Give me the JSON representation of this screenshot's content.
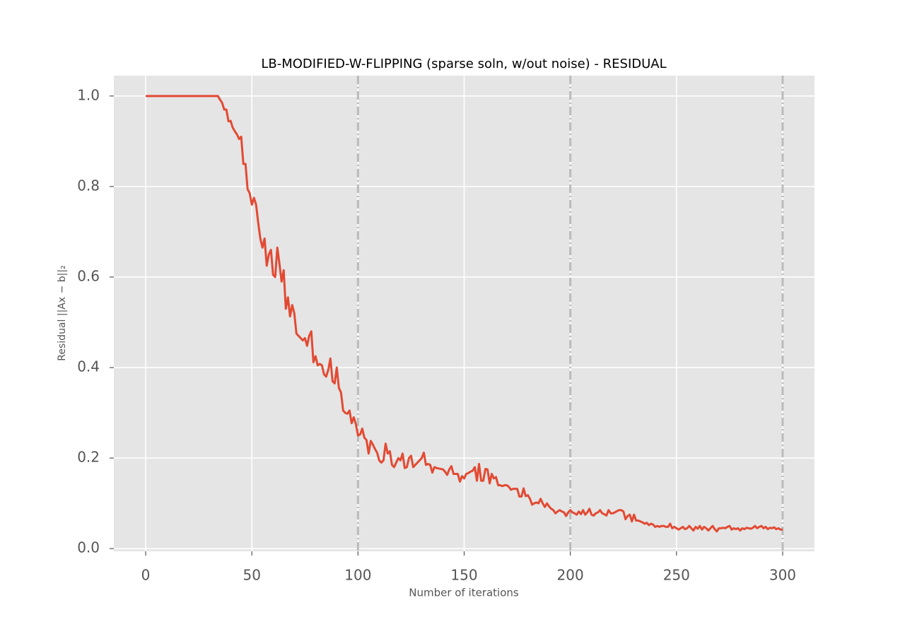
{
  "chart_data": {
    "type": "line",
    "title": "LB-MODIFIED-W-FLIPPING (sparse soln, w/out noise) - RESIDUAL",
    "x_label": "Number of iterations",
    "y_label": "Residual ||Ax − b||₂",
    "color": "#e24a33",
    "vlines": [
      100,
      200,
      300
    ],
    "vline_color": "#bbbbbb",
    "grid": true,
    "xlim": [
      -15,
      315
    ],
    "ylim": [
      -0.006,
      1.045
    ],
    "xticks": [
      0,
      50,
      100,
      150,
      200,
      250,
      300
    ],
    "yticks": [
      {
        "value": 0,
        "label": "0.0"
      },
      {
        "value": 0.2,
        "label": "0.2"
      },
      {
        "value": 0.4,
        "label": "0.4"
      },
      {
        "value": 0.6,
        "label": "0.6"
      },
      {
        "value": 0.8,
        "label": "0.8"
      },
      {
        "value": 1,
        "label": "1.0"
      }
    ],
    "x": [
      0,
      34,
      35,
      36,
      37,
      38,
      39,
      40,
      41,
      42,
      43,
      44,
      45,
      46,
      47,
      48,
      49,
      50,
      51,
      52,
      53,
      54,
      55,
      56,
      57,
      58,
      59,
      60,
      61,
      62,
      63,
      64,
      65,
      66,
      67,
      68,
      69,
      70,
      71,
      72,
      73,
      74,
      75,
      76,
      77,
      78,
      79,
      80,
      81,
      82,
      83,
      84,
      85,
      86,
      87,
      88,
      89,
      90,
      91,
      92,
      93,
      94,
      95,
      96,
      97,
      98,
      99,
      100,
      101,
      102,
      103,
      104,
      105,
      106,
      107,
      108,
      109,
      110,
      111,
      112,
      113,
      114,
      115,
      116,
      117,
      118,
      119,
      120,
      121,
      122,
      123,
      124,
      125,
      126,
      127,
      128,
      129,
      130,
      131,
      132,
      133,
      134,
      135,
      136,
      137,
      138,
      139,
      140,
      141,
      142,
      143,
      144,
      145,
      146,
      147,
      148,
      149,
      150,
      151,
      152,
      153,
      154,
      155,
      156,
      157,
      158,
      159,
      160,
      161,
      162,
      163,
      164,
      165,
      166,
      167,
      168,
      169,
      170,
      171,
      172,
      173,
      174,
      175,
      176,
      177,
      178,
      179,
      180,
      181,
      182,
      183,
      184,
      185,
      186,
      187,
      188,
      189,
      190,
      191,
      192,
      193,
      194,
      195,
      196,
      197,
      198,
      199,
      200,
      201,
      202,
      203,
      204,
      205,
      206,
      207,
      208,
      209,
      210,
      211,
      212,
      213,
      214,
      215,
      216,
      217,
      218,
      219,
      220,
      221,
      222,
      223,
      224,
      225,
      226,
      227,
      228,
      229,
      230,
      231,
      232,
      233,
      234,
      235,
      236,
      237,
      238,
      239,
      240,
      241,
      242,
      243,
      244,
      245,
      246,
      247,
      248,
      249,
      250,
      251,
      252,
      253,
      254,
      255,
      256,
      257,
      258,
      259,
      260,
      261,
      262,
      263,
      264,
      265,
      266,
      267,
      268,
      269,
      270,
      271,
      272,
      273,
      274,
      275,
      276,
      277,
      278,
      279,
      280,
      281,
      282,
      283,
      284,
      285,
      286,
      287,
      288,
      289,
      290,
      291,
      292,
      293,
      294,
      295,
      296,
      297,
      298,
      299,
      300
    ],
    "values": [
      1,
      1,
      0.992,
      0.985,
      0.97,
      0.97,
      0.944,
      0.945,
      0.93,
      0.922,
      0.915,
      0.905,
      0.91,
      0.85,
      0.85,
      0.794,
      0.785,
      0.76,
      0.775,
      0.76,
      0.72,
      0.685,
      0.665,
      0.685,
      0.625,
      0.65,
      0.66,
      0.605,
      0.6,
      0.665,
      0.63,
      0.59,
      0.615,
      0.53,
      0.555,
      0.513,
      0.538,
      0.52,
      0.475,
      0.47,
      0.465,
      0.46,
      0.465,
      0.448,
      0.47,
      0.48,
      0.412,
      0.425,
      0.405,
      0.408,
      0.405,
      0.385,
      0.38,
      0.395,
      0.42,
      0.37,
      0.365,
      0.4,
      0.355,
      0.345,
      0.305,
      0.3,
      0.298,
      0.305,
      0.277,
      0.29,
      0.275,
      0.25,
      0.252,
      0.265,
      0.245,
      0.24,
      0.21,
      0.238,
      0.23,
      0.22,
      0.212,
      0.195,
      0.19,
      0.195,
      0.232,
      0.21,
      0.215,
      0.185,
      0.18,
      0.19,
      0.2,
      0.195,
      0.21,
      0.178,
      0.18,
      0.2,
      0.205,
      0.18,
      0.185,
      0.19,
      0.195,
      0.2,
      0.212,
      0.185,
      0.187,
      0.185,
      0.168,
      0.18,
      0.178,
      0.177,
      0.176,
      0.175,
      0.17,
      0.163,
      0.175,
      0.182,
      0.165,
      0.165,
      0.165,
      0.148,
      0.16,
      0.155,
      0.165,
      0.167,
      0.17,
      0.172,
      0.18,
      0.15,
      0.187,
      0.15,
      0.15,
      0.176,
      0.175,
      0.144,
      0.165,
      0.155,
      0.158,
      0.14,
      0.14,
      0.138,
      0.14,
      0.14,
      0.137,
      0.13,
      0.132,
      0.132,
      0.132,
      0.115,
      0.115,
      0.133,
      0.116,
      0.118,
      0.11,
      0.097,
      0.1,
      0.102,
      0.1,
      0.11,
      0.1,
      0.092,
      0.1,
      0.093,
      0.088,
      0.085,
      0.078,
      0.082,
      0.085,
      0.082,
      0.08,
      0.072,
      0.08,
      0.085,
      0.08,
      0.078,
      0.075,
      0.082,
      0.076,
      0.085,
      0.075,
      0.08,
      0.088,
      0.075,
      0.073,
      0.078,
      0.08,
      0.085,
      0.078,
      0.076,
      0.073,
      0.085,
      0.078,
      0.078,
      0.08,
      0.083,
      0.085,
      0.085,
      0.082,
      0.065,
      0.072,
      0.075,
      0.06,
      0.075,
      0.062,
      0.062,
      0.06,
      0.058,
      0.055,
      0.057,
      0.052,
      0.055,
      0.053,
      0.048,
      0.05,
      0.048,
      0.05,
      0.05,
      0.048,
      0.048,
      0.055,
      0.045,
      0.048,
      0.045,
      0.042,
      0.045,
      0.048,
      0.043,
      0.045,
      0.05,
      0.045,
      0.04,
      0.048,
      0.044,
      0.05,
      0.042,
      0.048,
      0.045,
      0.04,
      0.045,
      0.05,
      0.043,
      0.038,
      0.045,
      0.045,
      0.046,
      0.045,
      0.048,
      0.05,
      0.042,
      0.045,
      0.043,
      0.045,
      0.04,
      0.045,
      0.043,
      0.046,
      0.045,
      0.044,
      0.046,
      0.05,
      0.045,
      0.048,
      0.05,
      0.045,
      0.048,
      0.043,
      0.046,
      0.045,
      0.047,
      0.043,
      0.045,
      0.042,
      0.042
    ]
  }
}
